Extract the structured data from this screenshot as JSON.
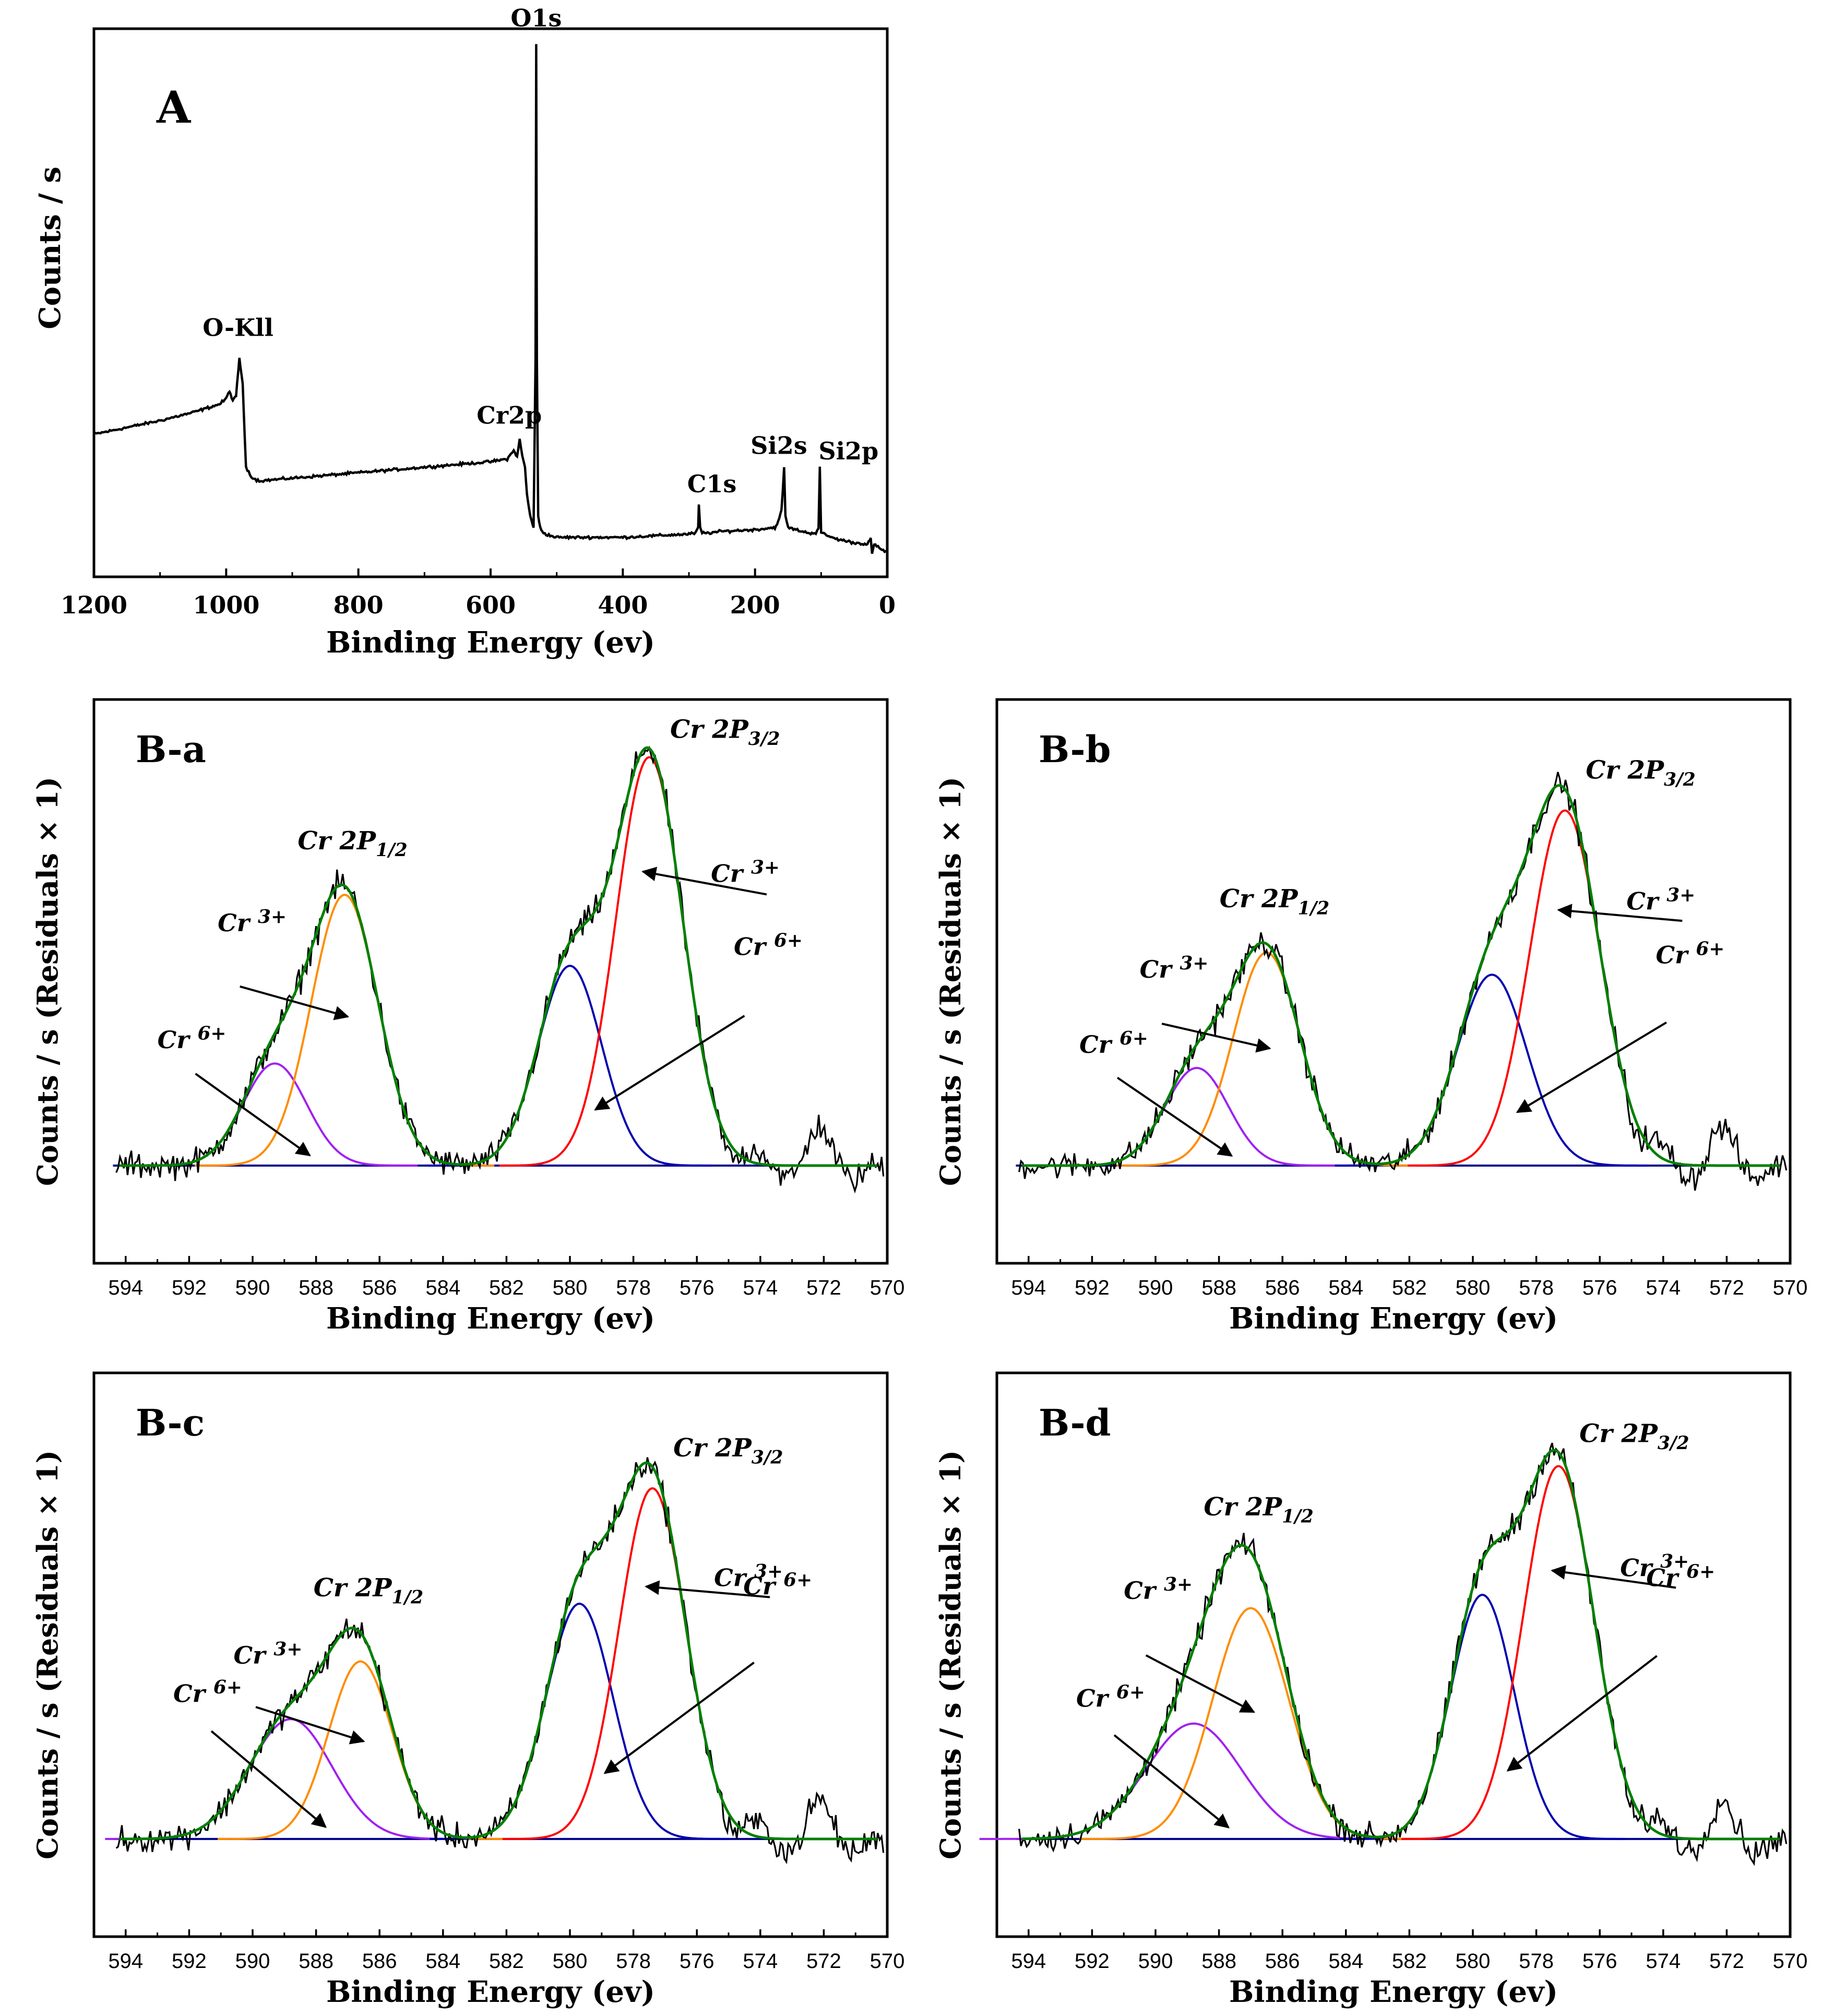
{
  "chart_data": [
    {
      "id": "A",
      "type": "line",
      "panel_label": "A",
      "xlabel": "Binding Energy (ev)",
      "ylabel": "Counts / s",
      "xlim": [
        1200,
        0
      ],
      "ylim": [
        0,
        100
      ],
      "x_ticks": [
        1200,
        1000,
        800,
        600,
        400,
        200,
        0
      ],
      "series": [
        {
          "name": "survey",
          "color": "#000000",
          "x": [
            1200,
            1100,
            1050,
            1010,
            1000,
            995,
            990,
            985,
            980,
            975,
            970,
            960,
            950,
            900,
            800,
            700,
            600,
            575,
            565,
            560,
            556,
            552,
            548,
            545,
            540,
            535,
            532,
            531,
            530,
            528,
            525,
            520,
            510,
            500,
            450,
            400,
            350,
            300,
            290,
            286,
            285,
            283,
            280,
            270,
            250,
            200,
            170,
            165,
            160,
            156,
            154,
            150,
            120,
            108,
            104,
            102,
            100,
            80,
            50,
            30,
            25,
            23,
            20,
            10,
            0
          ],
          "y": [
            26,
            28.5,
            30,
            31.5,
            32.5,
            34,
            32,
            33,
            40,
            35,
            20,
            18,
            17.5,
            18,
            19,
            20,
            21,
            21.5,
            23,
            22,
            25,
            22,
            20,
            15,
            11,
            9,
            40,
            97,
            40,
            11,
            9,
            8,
            7.5,
            7.2,
            7.2,
            7.2,
            7.5,
            7.8,
            8,
            9,
            13,
            9,
            8,
            8,
            8.3,
            8.6,
            9,
            10,
            12,
            20,
            11,
            9,
            8,
            8,
            9,
            20,
            8,
            7,
            6.2,
            6,
            7,
            4,
            6,
            5,
            4.5
          ]
        }
      ],
      "annotations": [
        "O1s",
        "O-Kll",
        "Cr2p",
        "C1s",
        "Si2s",
        "Si2p"
      ]
    },
    {
      "id": "B-a",
      "type": "line",
      "panel_label": "B-a",
      "xlabel": "Binding Energy (ev)",
      "ylabel": "Counts / s  (Residuals × 1)",
      "xlim": [
        595,
        570
      ],
      "ylim": [
        -0.22,
        1.05
      ],
      "x_ticks": [
        594,
        592,
        590,
        588,
        586,
        584,
        582,
        580,
        578,
        576,
        574,
        572,
        570
      ],
      "components": [
        {
          "name": "Cr 6+ (2p1/2)",
          "color": "#a020f0",
          "center": 589.3,
          "amplitude": 0.23,
          "sigma": 1.0
        },
        {
          "name": "Cr 3+ (2p1/2)",
          "color": "#ff8c00",
          "center": 587.1,
          "amplitude": 0.61,
          "sigma": 1.05
        },
        {
          "name": "Cr 6+ (2p3/2)",
          "color": "#0000b0",
          "center": 580.0,
          "amplitude": 0.45,
          "sigma": 1.0
        },
        {
          "name": "Cr 3+ (2p3/2)",
          "color": "#ff0000",
          "center": 577.5,
          "amplitude": 0.92,
          "sigma": 1.05
        },
        {
          "name": "Envelope",
          "color": "#008000"
        },
        {
          "name": "Raw data",
          "color": "#000000"
        }
      ],
      "annotations": {
        "peak_high": {
          "base": "Cr 2P",
          "sub": "3/2"
        },
        "peak_low": {
          "base": "Cr 2P",
          "sub": "1/2"
        },
        "cr3_high": {
          "base": "Cr ",
          "sup": "3+"
        },
        "cr6_high": {
          "base": "Cr ",
          "sup": "6+"
        },
        "cr3_low": {
          "base": "Cr ",
          "sup": "3+"
        },
        "cr6_low": {
          "base": "Cr ",
          "sup": "6+"
        }
      }
    },
    {
      "id": "B-b",
      "type": "line",
      "panel_label": "B-b",
      "xlabel": "Binding Energy (ev)",
      "ylabel": "Counts / s  (Residuals × 1)",
      "xlim": [
        595,
        570
      ],
      "ylim": [
        -0.22,
        1.05
      ],
      "x_ticks": [
        594,
        592,
        590,
        588,
        586,
        584,
        582,
        580,
        578,
        576,
        574,
        572,
        570
      ],
      "components": [
        {
          "name": "Cr 6+ (2p1/2)",
          "color": "#a020f0",
          "center": 588.7,
          "amplitude": 0.22,
          "sigma": 1.0
        },
        {
          "name": "Cr 3+ (2p1/2)",
          "color": "#ff8c00",
          "center": 586.5,
          "amplitude": 0.48,
          "sigma": 1.05
        },
        {
          "name": "Cr 6+ (2p3/2)",
          "color": "#0000b0",
          "center": 579.4,
          "amplitude": 0.43,
          "sigma": 1.1
        },
        {
          "name": "Cr 3+ (2p3/2)",
          "color": "#ff0000",
          "center": 577.1,
          "amplitude": 0.8,
          "sigma": 1.1
        },
        {
          "name": "Envelope",
          "color": "#008000"
        },
        {
          "name": "Raw data",
          "color": "#000000"
        }
      ],
      "annotations": {
        "peak_high": {
          "base": "Cr 2P",
          "sub": "3/2"
        },
        "peak_low": {
          "base": "Cr 2P",
          "sub": "1/2"
        },
        "cr3_high": {
          "base": "Cr ",
          "sup": "3+"
        },
        "cr6_high": {
          "base": "Cr ",
          "sup": "6+"
        },
        "cr3_low": {
          "base": "Cr ",
          "sup": "3+"
        },
        "cr6_low": {
          "base": "Cr ",
          "sup": "6+"
        }
      }
    },
    {
      "id": "B-c",
      "type": "line",
      "panel_label": "B-c",
      "xlabel": "Binding Energy (ev)",
      "ylabel": "Counts / s  (Residuals × 1)",
      "xlim": [
        595,
        570
      ],
      "ylim": [
        -0.22,
        1.05
      ],
      "x_ticks": [
        594,
        592,
        590,
        588,
        586,
        584,
        582,
        580,
        578,
        576,
        574,
        572,
        570
      ],
      "components": [
        {
          "name": "Cr 6+ (2p1/2)",
          "color": "#a020f0",
          "center": 588.8,
          "amplitude": 0.27,
          "sigma": 1.3
        },
        {
          "name": "Cr 3+ (2p1/2)",
          "color": "#ff8c00",
          "center": 586.6,
          "amplitude": 0.4,
          "sigma": 1.0
        },
        {
          "name": "Cr 6+ (2p3/2)",
          "color": "#0000b0",
          "center": 579.7,
          "amplitude": 0.53,
          "sigma": 1.05
        },
        {
          "name": "Cr 3+ (2p3/2)",
          "color": "#ff0000",
          "center": 577.4,
          "amplitude": 0.79,
          "sigma": 1.05
        },
        {
          "name": "Envelope",
          "color": "#008000"
        },
        {
          "name": "Raw data",
          "color": "#000000"
        }
      ],
      "annotations": {
        "peak_high": {
          "base": "Cr 2P",
          "sub": "3/2"
        },
        "peak_low": {
          "base": "Cr 2P",
          "sub": "1/2"
        },
        "cr3_high": {
          "base": "Cr ",
          "sup": "3+"
        },
        "cr6_high": {
          "base": "Cr ",
          "sup": "6+"
        },
        "cr3_low": {
          "base": "Cr ",
          "sup": "3+"
        },
        "cr6_low": {
          "base": "Cr ",
          "sup": "6+"
        }
      }
    },
    {
      "id": "B-d",
      "type": "line",
      "panel_label": "B-d",
      "xlabel": "Binding Energy (ev)",
      "ylabel": "Counts / s  (Residuals × 1)",
      "xlim": [
        595,
        570
      ],
      "ylim": [
        -0.22,
        1.05
      ],
      "x_ticks": [
        594,
        592,
        590,
        588,
        586,
        584,
        582,
        580,
        578,
        576,
        574,
        572,
        570
      ],
      "components": [
        {
          "name": "Cr 6+ (2p1/2)",
          "color": "#a020f0",
          "center": 588.8,
          "amplitude": 0.26,
          "sigma": 1.5
        },
        {
          "name": "Cr 3+ (2p1/2)",
          "color": "#ff8c00",
          "center": 587.0,
          "amplitude": 0.52,
          "sigma": 1.2
        },
        {
          "name": "Cr 6+ (2p3/2)",
          "color": "#0000b0",
          "center": 579.7,
          "amplitude": 0.55,
          "sigma": 1.0
        },
        {
          "name": "Cr 3+ (2p3/2)",
          "color": "#ff0000",
          "center": 577.3,
          "amplitude": 0.84,
          "sigma": 1.1
        },
        {
          "name": "Envelope",
          "color": "#008000"
        },
        {
          "name": "Raw data",
          "color": "#000000"
        }
      ],
      "annotations": {
        "peak_high": {
          "base": "Cr 2P",
          "sub": "3/2"
        },
        "peak_low": {
          "base": "Cr 2P",
          "sub": "1/2"
        },
        "cr3_high": {
          "base": "Cr ",
          "sup": "3+"
        },
        "cr6_high": {
          "base": "Cr ",
          "sup": "6+"
        },
        "cr3_low": {
          "base": "Cr ",
          "sup": "3+"
        },
        "cr6_low": {
          "base": "Cr ",
          "sup": "6+"
        }
      }
    }
  ]
}
